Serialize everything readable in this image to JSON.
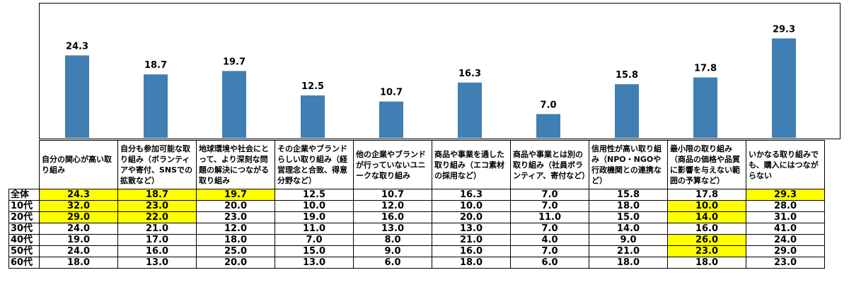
{
  "chart_data": {
    "type": "bar",
    "categories": [
      "自分の関心が高い取り組み",
      "自分も参加可能な取り組み（ボランティアや寄付、SNSでの拡散など）",
      "地球環境や社会にとって、より深刻な問題の解決につながる取り組み",
      "その企業やブランドらしい取り組み（経営理念と合致、得意分野など）",
      "他の企業やブランドが行っていないユニークな取り組み",
      "商品や事業を通した取り組み（エコ素材の採用など）",
      "商品や事業とは別の取り組み（社員ボランティア、寄付など）",
      "信用性が高い取り組み（NPO・NGOや行政機関との連携など）",
      "最小限の取り組み（商品の価格や品質に影響を与えない範囲の予算など）",
      "いかなる取り組みでも、購入にはつながらない"
    ],
    "values": [
      24.3,
      18.7,
      19.7,
      12.5,
      10.7,
      16.3,
      7.0,
      15.8,
      17.8,
      29.3
    ],
    "labels": [
      "24.3",
      "18.7",
      "19.7",
      "12.5",
      "10.7",
      "16.3",
      "7.0",
      "15.8",
      "17.8",
      "29.3"
    ],
    "ylim": [
      0,
      35
    ],
    "bar_color": "#3f7fb3",
    "grid": false,
    "title": "",
    "xlabel": "",
    "ylabel": ""
  },
  "table": {
    "highlight_color": "#ffff00",
    "rows": [
      {
        "label": "全体",
        "values": [
          "24.3",
          "18.7",
          "19.7",
          "12.5",
          "10.7",
          "16.3",
          "7.0",
          "15.8",
          "17.8",
          "29.3"
        ],
        "highlight": [
          0,
          1,
          2,
          9
        ]
      },
      {
        "label": "10代",
        "values": [
          "32.0",
          "23.0",
          "20.0",
          "10.0",
          "12.0",
          "10.0",
          "7.0",
          "18.0",
          "10.0",
          "28.0"
        ],
        "highlight": [
          0,
          1,
          8
        ]
      },
      {
        "label": "20代",
        "values": [
          "29.0",
          "22.0",
          "23.0",
          "19.0",
          "16.0",
          "20.0",
          "11.0",
          "15.0",
          "14.0",
          "31.0"
        ],
        "highlight": [
          0,
          1,
          8
        ]
      },
      {
        "label": "30代",
        "values": [
          "24.0",
          "21.0",
          "12.0",
          "11.0",
          "13.0",
          "13.0",
          "7.0",
          "14.0",
          "16.0",
          "41.0"
        ],
        "highlight": []
      },
      {
        "label": "40代",
        "values": [
          "19.0",
          "17.0",
          "18.0",
          "7.0",
          "8.0",
          "21.0",
          "4.0",
          "9.0",
          "26.0",
          "24.0"
        ],
        "highlight": [
          8
        ]
      },
      {
        "label": "50代",
        "values": [
          "24.0",
          "16.0",
          "25.0",
          "15.0",
          "9.0",
          "16.0",
          "7.0",
          "21.0",
          "23.0",
          "29.0"
        ],
        "highlight": [
          8
        ]
      },
      {
        "label": "60代",
        "values": [
          "18.0",
          "13.0",
          "20.0",
          "13.0",
          "6.0",
          "18.0",
          "6.0",
          "18.0",
          "18.0",
          "23.0"
        ],
        "highlight": []
      }
    ]
  }
}
